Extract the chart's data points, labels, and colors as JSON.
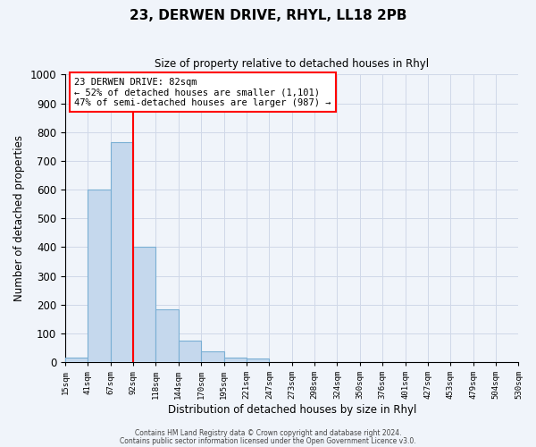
{
  "title": "23, DERWEN DRIVE, RHYL, LL18 2PB",
  "subtitle": "Size of property relative to detached houses in Rhyl",
  "xlabel": "Distribution of detached houses by size in Rhyl",
  "ylabel": "Number of detached properties",
  "bar_values": [
    15,
    600,
    765,
    400,
    185,
    75,
    38,
    15,
    12,
    0,
    0,
    0,
    0,
    0,
    0,
    0,
    0,
    0,
    0,
    0
  ],
  "bin_labels": [
    "15sqm",
    "41sqm",
    "67sqm",
    "92sqm",
    "118sqm",
    "144sqm",
    "170sqm",
    "195sqm",
    "221sqm",
    "247sqm",
    "273sqm",
    "298sqm",
    "324sqm",
    "350sqm",
    "376sqm",
    "401sqm",
    "427sqm",
    "453sqm",
    "479sqm",
    "504sqm",
    "530sqm"
  ],
  "bar_color": "#c5d8ed",
  "bar_edge_color": "#7aafd4",
  "vline_color": "red",
  "vline_bin_index": 2,
  "ylim": [
    0,
    1000
  ],
  "annotation_box_text": "23 DERWEN DRIVE: 82sqm\n← 52% of detached houses are smaller (1,101)\n47% of semi-detached houses are larger (987) →",
  "annotation_box_color": "white",
  "annotation_box_edge_color": "red",
  "footnote1": "Contains HM Land Registry data © Crown copyright and database right 2024.",
  "footnote2": "Contains public sector information licensed under the Open Government Licence v3.0.",
  "background_color": "#f0f4fa",
  "grid_color": "#d0d8e8"
}
